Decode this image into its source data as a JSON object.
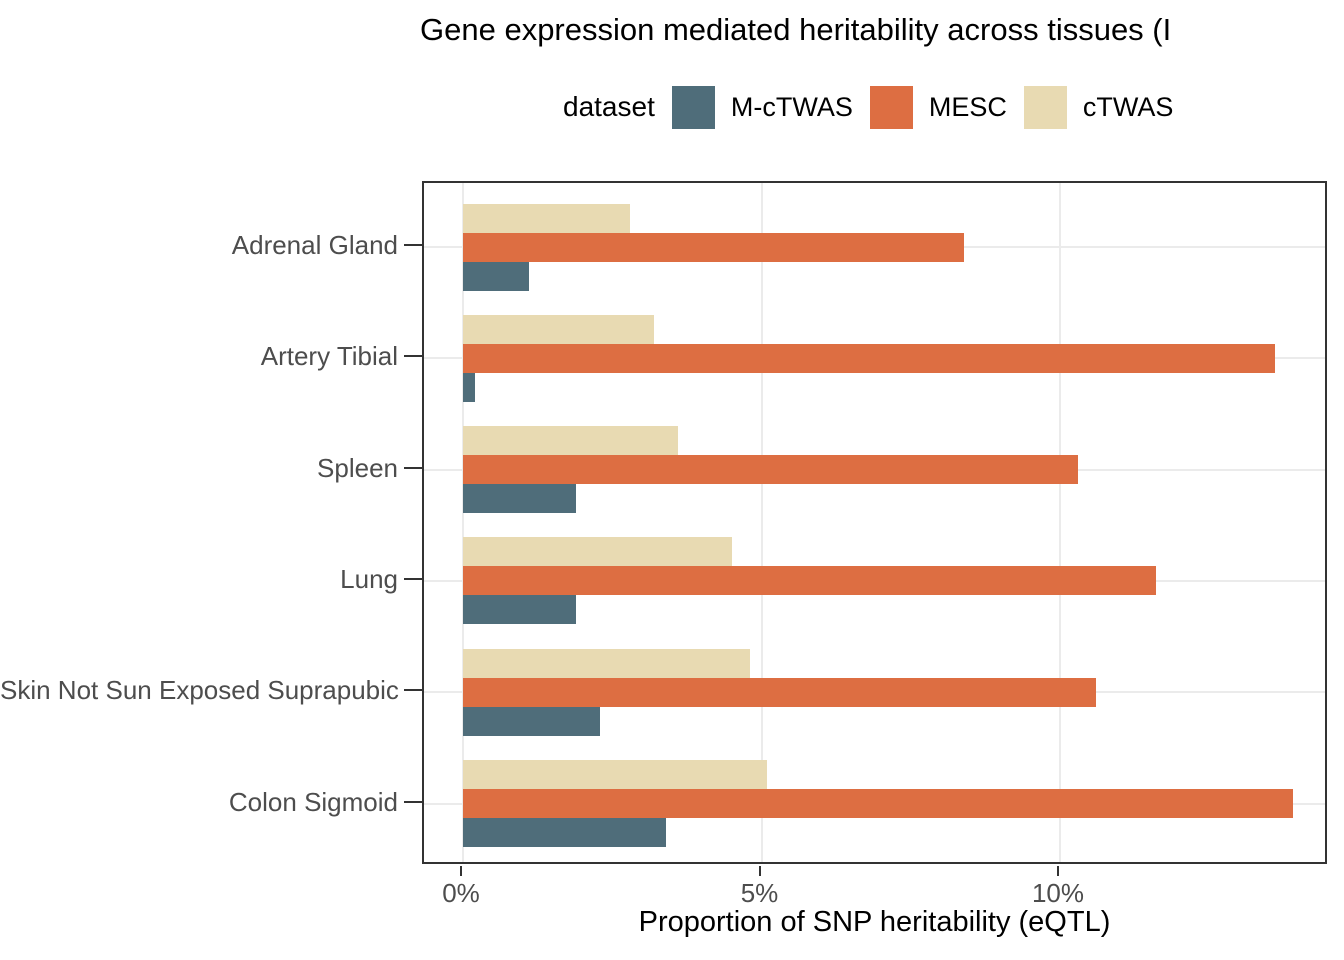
{
  "chart_data": {
    "type": "bar",
    "orientation": "horizontal",
    "title": "Gene expression mediated heritability across tissues (I",
    "xlabel": "Proportion of SNP heritability (eQTL)",
    "legend": {
      "title": "dataset",
      "position": "top"
    },
    "categories": [
      "Adrenal Gland",
      "Artery Tibial",
      "Spleen",
      "Lung",
      "Skin Not Sun Exposed Suprapubic",
      "Colon Sigmoid"
    ],
    "series": [
      {
        "name": "M-cTWAS",
        "color": "#4F6D7A",
        "values": [
          1.1,
          0.2,
          1.9,
          1.9,
          2.3,
          3.4
        ]
      },
      {
        "name": "MESC",
        "color": "#DD6E42",
        "values": [
          8.4,
          13.6,
          10.3,
          11.6,
          10.6,
          13.9
        ]
      },
      {
        "name": "cTWAS",
        "color": "#E8DAB2",
        "values": [
          2.8,
          3.2,
          3.6,
          4.5,
          4.8,
          5.1
        ]
      }
    ],
    "x_ticks": [
      {
        "label": "0%",
        "value": 0
      },
      {
        "label": "5%",
        "value": 5
      },
      {
        "label": "10%",
        "value": 10
      }
    ],
    "xlim": [
      -0.7,
      14.5
    ],
    "grid": "major",
    "colors": {
      "panel_border": "#333333",
      "gridline": "#EBEBEB",
      "tick_label": "#4D4D4D",
      "bar_order_top_to_bottom": "cTWAS, MESC, M-cTWAS"
    }
  }
}
